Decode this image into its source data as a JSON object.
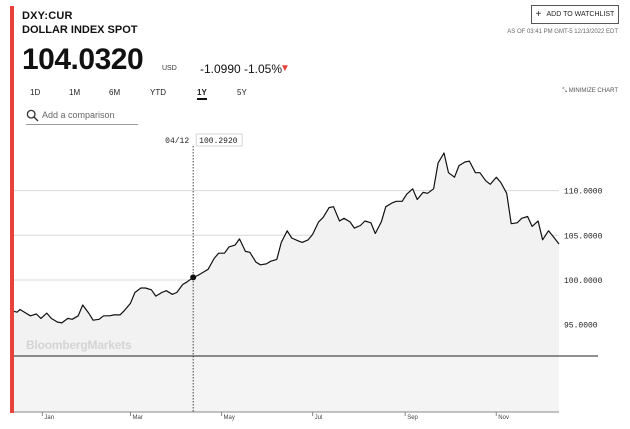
{
  "header": {
    "ticker": "DXY:CUR",
    "name": "DOLLAR INDEX SPOT",
    "price": "104.0320",
    "currency": "USD",
    "change": "-1.0990",
    "change_pct": "-1.05%",
    "direction_icon": "down-triangle-icon",
    "down_color": "#e8433a"
  },
  "actions": {
    "watchlist_label": "ADD TO WATCHLIST",
    "as_of": "AS OF 03:41 PM GMT-5 12/13/2022 EDT",
    "minimize_label": "MINIMIZE CHART"
  },
  "range_tabs": [
    {
      "label": "1D",
      "active": false
    },
    {
      "label": "1M",
      "active": false
    },
    {
      "label": "6M",
      "active": false
    },
    {
      "label": "YTD",
      "active": false
    },
    {
      "label": "1Y",
      "active": true
    },
    {
      "label": "5Y",
      "active": false
    }
  ],
  "comparison": {
    "placeholder": "Add a comparison"
  },
  "watermark": "BloombergMarkets",
  "chart_data": {
    "type": "area",
    "title": "",
    "xlabel": "",
    "ylabel": "",
    "ylim": [
      91.5,
      117
    ],
    "y_ticks": [
      "95.0000",
      "100.0000",
      "105.0000",
      "110.0000"
    ],
    "y_tick_values": [
      95,
      100,
      105,
      110
    ],
    "x_ticks": [
      "Jan",
      "Mar",
      "May",
      "Jul",
      "Sep",
      "Nov"
    ],
    "x_tick_dates": [
      "2022-01-01",
      "2022-03-01",
      "2022-05-01",
      "2022-07-01",
      "2022-09-01",
      "2022-11-01"
    ],
    "xlim": [
      "2021-12-13",
      "2022-12-13"
    ],
    "grid": true,
    "line_color": "#111111",
    "area_color": "#f2f2f2",
    "crosshair": {
      "date": "04/12",
      "date_value": "2022-04-12",
      "value": "100.2920",
      "y": 100.292
    },
    "series": [
      {
        "x": [
          "2021-12-13",
          "2021-12-15",
          "2021-12-17",
          "2021-12-21",
          "2021-12-24",
          "2021-12-28",
          "2021-12-31",
          "2022-01-04",
          "2022-01-07",
          "2022-01-11",
          "2022-01-14",
          "2022-01-18",
          "2022-01-21",
          "2022-01-25",
          "2022-01-28",
          "2022-02-01",
          "2022-02-04",
          "2022-02-08",
          "2022-02-11",
          "2022-02-15",
          "2022-02-18",
          "2022-02-22",
          "2022-02-25",
          "2022-03-01",
          "2022-03-04",
          "2022-03-08",
          "2022-03-11",
          "2022-03-15",
          "2022-03-18",
          "2022-03-22",
          "2022-03-25",
          "2022-03-29",
          "2022-04-01",
          "2022-04-05",
          "2022-04-08",
          "2022-04-12",
          "2022-04-15",
          "2022-04-19",
          "2022-04-22",
          "2022-04-26",
          "2022-04-29",
          "2022-05-03",
          "2022-05-06",
          "2022-05-10",
          "2022-05-13",
          "2022-05-17",
          "2022-05-20",
          "2022-05-24",
          "2022-05-27",
          "2022-05-31",
          "2022-06-03",
          "2022-06-07",
          "2022-06-10",
          "2022-06-14",
          "2022-06-17",
          "2022-06-21",
          "2022-06-24",
          "2022-06-28",
          "2022-07-01",
          "2022-07-05",
          "2022-07-08",
          "2022-07-12",
          "2022-07-15",
          "2022-07-19",
          "2022-07-22",
          "2022-07-26",
          "2022-07-29",
          "2022-08-02",
          "2022-08-05",
          "2022-08-09",
          "2022-08-12",
          "2022-08-16",
          "2022-08-19",
          "2022-08-23",
          "2022-08-26",
          "2022-08-30",
          "2022-09-02",
          "2022-09-06",
          "2022-09-09",
          "2022-09-13",
          "2022-09-16",
          "2022-09-20",
          "2022-09-23",
          "2022-09-27",
          "2022-09-30",
          "2022-10-04",
          "2022-10-07",
          "2022-10-11",
          "2022-10-14",
          "2022-10-18",
          "2022-10-21",
          "2022-10-25",
          "2022-10-28",
          "2022-11-01",
          "2022-11-04",
          "2022-11-08",
          "2022-11-11",
          "2022-11-15",
          "2022-11-18",
          "2022-11-22",
          "2022-11-25",
          "2022-11-29",
          "2022-12-02",
          "2022-12-06",
          "2022-12-09",
          "2022-12-13"
        ],
        "y": [
          96.5,
          96.4,
          96.7,
          96.3,
          96.0,
          96.2,
          95.7,
          96.3,
          95.7,
          95.3,
          95.2,
          95.7,
          95.6,
          96.0,
          97.2,
          96.3,
          95.5,
          95.6,
          96.0,
          96.0,
          96.1,
          96.1,
          96.6,
          97.4,
          98.6,
          99.1,
          99.1,
          98.9,
          98.2,
          98.6,
          98.8,
          98.4,
          98.6,
          99.5,
          99.8,
          100.29,
          100.5,
          100.9,
          101.2,
          102.4,
          103.0,
          103.0,
          103.7,
          103.9,
          104.6,
          103.2,
          103.1,
          102.0,
          101.7,
          101.8,
          102.1,
          102.3,
          104.2,
          105.5,
          104.7,
          104.4,
          104.2,
          104.5,
          105.1,
          106.5,
          107.0,
          108.1,
          108.2,
          106.6,
          106.9,
          106.5,
          105.8,
          106.1,
          106.6,
          106.4,
          105.2,
          106.5,
          108.2,
          108.6,
          108.8,
          108.8,
          109.6,
          110.2,
          109.0,
          109.8,
          109.7,
          110.2,
          113.1,
          114.2,
          112.0,
          111.5,
          112.8,
          113.2,
          113.3,
          112.0,
          112.0,
          111.1,
          110.7,
          111.5,
          110.9,
          109.7,
          106.3,
          106.4,
          106.9,
          107.1,
          106.0,
          106.6,
          104.5,
          105.5,
          104.9,
          104.03
        ]
      }
    ]
  }
}
